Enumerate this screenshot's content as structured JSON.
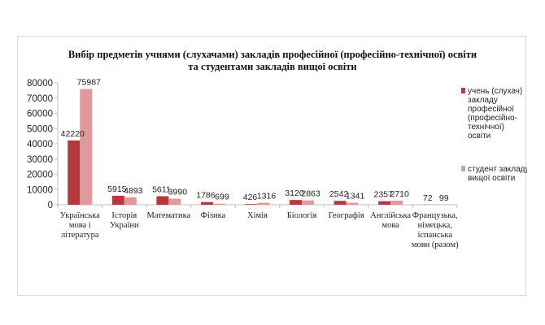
{
  "chart_data": {
    "type": "bar",
    "title": [
      "Вибір предметів учнями  (слухачами)  закладів  професійної (професійно-технічної) освіти",
      "та студентами закладів  вищої освіти"
    ],
    "categories": [
      [
        "Українська",
        "мова і",
        "література"
      ],
      [
        "Історія",
        "України"
      ],
      [
        "Математика"
      ],
      [
        "Фізика"
      ],
      [
        "Хімія"
      ],
      [
        "Біологія"
      ],
      [
        "Географія"
      ],
      [
        "Англійська",
        "мова"
      ],
      [
        "Французька,",
        "німецька,",
        "іспанська",
        "мови (разом)"
      ]
    ],
    "series": [
      {
        "name": [
          "учень (слухач)",
          "закладу",
          "професійної",
          "(професійно-",
          "технічної)",
          "освіти"
        ],
        "color": "#b4393c",
        "values": [
          42220,
          5915,
          5611,
          1786,
          426,
          3120,
          2542,
          2357,
          72
        ],
        "labels": [
          "42220",
          "5915",
          "5611",
          "1786",
          "426",
          "3120",
          "2542",
          "2357",
          "72"
        ]
      },
      {
        "name": [
          "студент закладу",
          "вищої освіти"
        ],
        "color": "#e09a9c",
        "values": [
          75987,
          4893,
          3990,
          699,
          1316,
          2863,
          1341,
          2710,
          99
        ],
        "labels": [
          "75987",
          "4893",
          "3990",
          "699",
          "1316",
          "2863",
          "1341",
          "2710",
          "99"
        ]
      }
    ],
    "ylim": [
      0,
      80000
    ],
    "yticks": [
      "0",
      "10000",
      "20000",
      "30000",
      "40000",
      "50000",
      "60000",
      "70000",
      "80000"
    ],
    "grid": false,
    "legend": "right"
  }
}
